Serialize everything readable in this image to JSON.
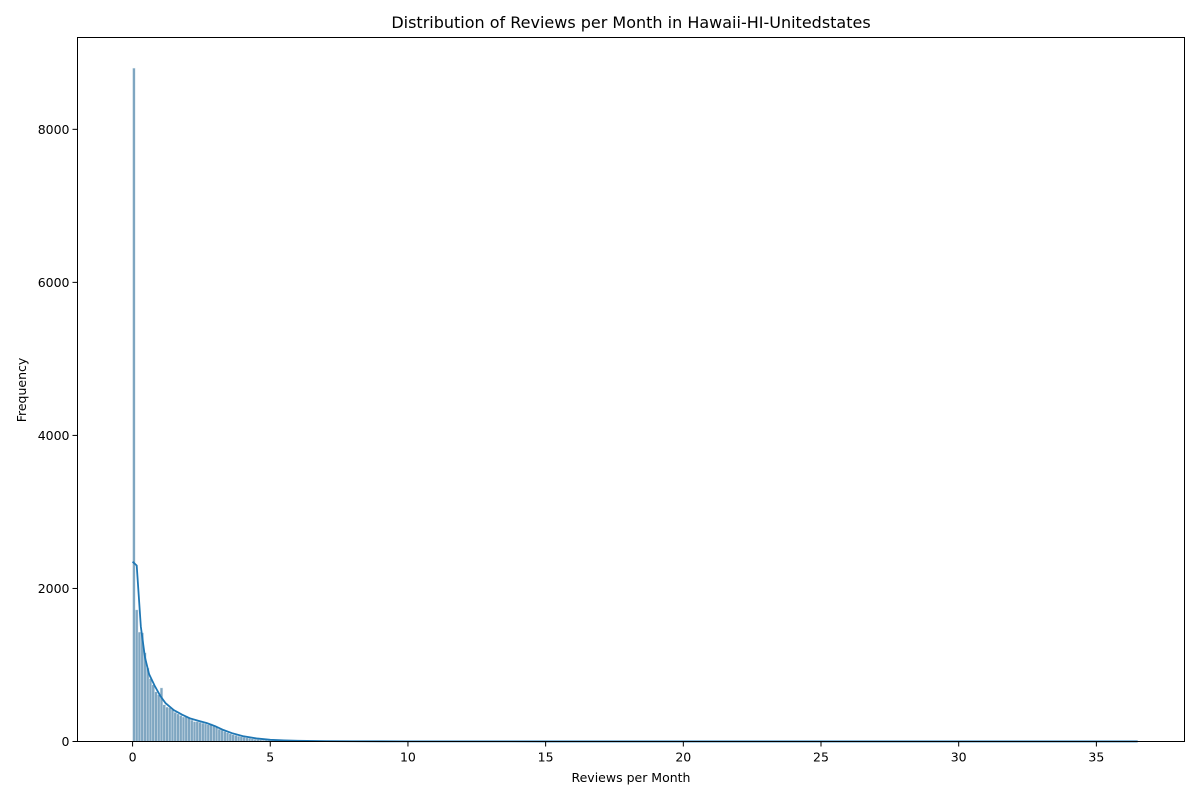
{
  "chart_data": {
    "type": "bar",
    "subtype": "histogram-with-kde",
    "title": "Distribution of Reviews per Month in Hawaii-HI-Unitedstates",
    "xlabel": "Reviews per Month",
    "ylabel": "Frequency",
    "xlim": [
      -2,
      38.2
    ],
    "ylim": [
      0,
      9200
    ],
    "xticks": [
      0,
      5,
      10,
      15,
      20,
      25,
      30,
      35
    ],
    "yticks": [
      0,
      2000,
      4000,
      6000,
      8000
    ],
    "grid": false,
    "bar_color": "#5b8db0",
    "kde_color": "#1f77b4",
    "bin_width": 0.1,
    "histogram": {
      "bin_edges_start": 0,
      "values": [
        8800,
        1720,
        1430,
        1420,
        1160,
        960,
        820,
        740,
        650,
        610,
        700,
        480,
        450,
        440,
        420,
        380,
        360,
        340,
        320,
        330,
        310,
        280,
        260,
        260,
        250,
        240,
        230,
        220,
        230,
        200,
        190,
        160,
        150,
        130,
        115,
        100,
        90,
        80,
        70,
        62,
        56,
        48,
        42,
        36,
        30,
        26,
        22,
        18,
        16,
        14,
        12,
        11,
        10,
        9,
        8,
        7,
        6,
        6,
        5,
        5,
        4,
        4,
        4,
        3,
        3,
        3,
        3,
        2,
        2,
        2,
        2,
        2,
        2,
        2,
        1,
        1,
        1,
        1,
        1,
        1
      ]
    },
    "kde": {
      "x": [
        0.0,
        0.15,
        0.3,
        0.45,
        0.6,
        0.8,
        1.0,
        1.2,
        1.5,
        1.8,
        2.1,
        2.4,
        2.7,
        3.0,
        3.3,
        3.6,
        4.0,
        4.5,
        5.0,
        5.5,
        6.0,
        7.0,
        8.0,
        10.0,
        15.0,
        20.0,
        25.0,
        30.0,
        36.5
      ],
      "y": [
        2350,
        2300,
        1500,
        1100,
        880,
        730,
        600,
        500,
        410,
        350,
        300,
        270,
        240,
        200,
        150,
        110,
        70,
        40,
        22,
        14,
        9,
        5,
        3,
        2,
        1,
        1,
        1,
        1,
        1
      ]
    }
  }
}
